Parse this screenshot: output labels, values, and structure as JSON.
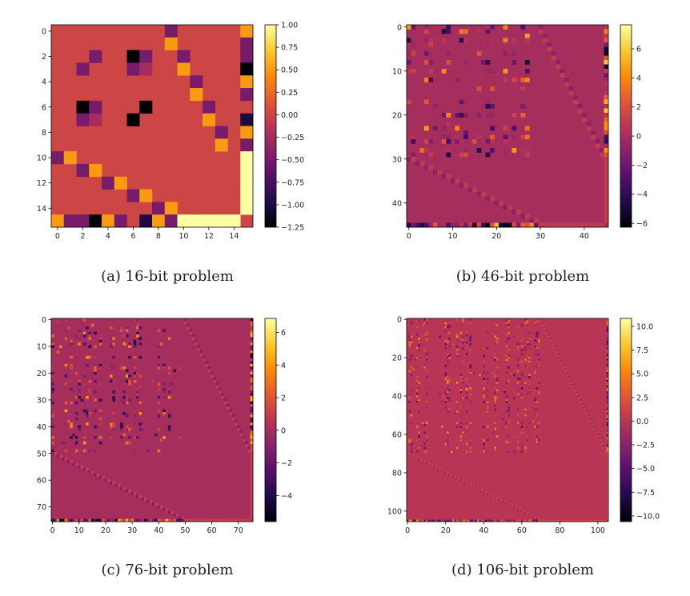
{
  "colors": {
    "colormap": "inferno",
    "frame": "#000000",
    "text": "#222222"
  },
  "chart_data": [
    {
      "id": "a",
      "type": "heatmap",
      "title": "(a) 16-bit problem",
      "size": 16,
      "default_value": 0,
      "xticks": [
        0,
        2,
        4,
        6,
        8,
        10,
        12,
        14
      ],
      "yticks": [
        0,
        2,
        4,
        6,
        8,
        10,
        12,
        14
      ],
      "colorbar": {
        "min": -1.25,
        "max": 1.0,
        "ticks": [
          1.0,
          0.75,
          0.5,
          0.25,
          0,
          -0.25,
          -0.5,
          -0.75,
          -1.0,
          -1.25
        ],
        "tick_labels": [
          "1.00",
          "0.75",
          "0.50",
          "0.25",
          "0.00",
          "−0.25",
          "−0.50",
          "−0.75",
          "−1.00",
          "−1.25"
        ]
      },
      "cells": [
        [
          0,
          9,
          -0.5
        ],
        [
          0,
          15,
          0.5
        ],
        [
          1,
          9,
          0.5
        ],
        [
          1,
          15,
          -0.5
        ],
        [
          2,
          3,
          -0.5
        ],
        [
          2,
          6,
          -1.25
        ],
        [
          2,
          7,
          -0.5
        ],
        [
          2,
          10,
          -0.5
        ],
        [
          2,
          15,
          -0.5
        ],
        [
          3,
          2,
          -0.5
        ],
        [
          3,
          6,
          -0.5
        ],
        [
          3,
          7,
          -0.25
        ],
        [
          3,
          10,
          0.5
        ],
        [
          3,
          15,
          -1.25
        ],
        [
          4,
          11,
          -0.5
        ],
        [
          4,
          15,
          0.5
        ],
        [
          5,
          11,
          0.5
        ],
        [
          5,
          15,
          -0.5
        ],
        [
          6,
          2,
          -1.25
        ],
        [
          6,
          3,
          -0.5
        ],
        [
          6,
          7,
          -1.25
        ],
        [
          6,
          12,
          -0.5
        ],
        [
          7,
          2,
          -0.5
        ],
        [
          7,
          3,
          -0.25
        ],
        [
          7,
          6,
          -1.25
        ],
        [
          7,
          12,
          0.5
        ],
        [
          7,
          15,
          -1.0
        ],
        [
          8,
          13,
          -0.5
        ],
        [
          8,
          15,
          0.5
        ],
        [
          9,
          13,
          0.5
        ],
        [
          9,
          15,
          -0.5
        ],
        [
          10,
          0,
          -0.5
        ],
        [
          10,
          1,
          0.5
        ],
        [
          10,
          15,
          1.0
        ],
        [
          11,
          2,
          -0.5
        ],
        [
          11,
          3,
          0.5
        ],
        [
          11,
          15,
          1.0
        ],
        [
          12,
          4,
          -0.5
        ],
        [
          12,
          5,
          0.5
        ],
        [
          12,
          15,
          1.0
        ],
        [
          13,
          6,
          -0.5
        ],
        [
          13,
          7,
          0.5
        ],
        [
          13,
          15,
          1.0
        ],
        [
          14,
          8,
          -0.5
        ],
        [
          14,
          9,
          0.5
        ],
        [
          14,
          15,
          1.0
        ],
        [
          15,
          0,
          0.5
        ],
        [
          15,
          1,
          -0.5
        ],
        [
          15,
          2,
          -0.5
        ],
        [
          15,
          3,
          -1.25
        ],
        [
          15,
          4,
          0.5
        ],
        [
          15,
          5,
          -0.5
        ],
        [
          15,
          7,
          -1.0
        ],
        [
          15,
          8,
          0.5
        ],
        [
          15,
          9,
          -0.5
        ],
        [
          15,
          10,
          1.0
        ],
        [
          15,
          11,
          1.0
        ],
        [
          15,
          12,
          1.0
        ],
        [
          15,
          13,
          1.0
        ],
        [
          15,
          14,
          1.0
        ]
      ]
    },
    {
      "id": "b",
      "type": "heatmap",
      "title": "(b) 46-bit problem",
      "size": 46,
      "default_value": 0,
      "xticks": [
        0,
        10,
        20,
        30,
        40
      ],
      "yticks": [
        0,
        10,
        20,
        30,
        40
      ],
      "colorbar": {
        "min": -6.27,
        "max": 7.65,
        "ticks": [
          6,
          4,
          2,
          0,
          -2,
          -4,
          -6
        ],
        "tick_labels": [
          "6",
          "4",
          "2",
          "0",
          "−2",
          "−4",
          "−6"
        ]
      },
      "structure": {
        "dense_block": 30,
        "seed": 11,
        "density": 0.55,
        "amplitude": 3.0,
        "band_value": 1.0,
        "edge_value": 0.9
      }
    },
    {
      "id": "c",
      "type": "heatmap",
      "title": "(c) 76-bit problem",
      "size": 76,
      "default_value": 0,
      "xticks": [
        0,
        10,
        20,
        30,
        40,
        50,
        60,
        70
      ],
      "yticks": [
        0,
        10,
        20,
        30,
        40,
        50,
        60,
        70
      ],
      "colorbar": {
        "min": -5.6,
        "max": 6.86,
        "ticks": [
          6,
          4,
          2,
          0,
          -2,
          -4
        ],
        "tick_labels": [
          "6",
          "4",
          "2",
          "0",
          "−2",
          "−4"
        ]
      },
      "structure": {
        "dense_block": 50,
        "seed": 23,
        "density": 0.5,
        "amplitude": 2.6,
        "band_value": 1.0,
        "edge_value": 1.0
      }
    },
    {
      "id": "d",
      "type": "heatmap",
      "title": "(d) 106-bit problem",
      "size": 106,
      "default_value": 0,
      "xticks": [
        0,
        20,
        40,
        60,
        80,
        100
      ],
      "yticks": [
        0,
        20,
        40,
        60,
        80,
        100
      ],
      "colorbar": {
        "min": -10.6,
        "max": 10.84,
        "ticks": [
          10,
          7.5,
          5,
          2.5,
          0,
          -2.5,
          -5,
          -7.5,
          -10
        ],
        "tick_labels": [
          "10.0",
          "7.5",
          "5.0",
          "2.5",
          "0.0",
          "−2.5",
          "−5.0",
          "−7.5",
          "−10.0"
        ]
      },
      "structure": {
        "dense_block": 70,
        "seed": 37,
        "density": 0.5,
        "amplitude": 3.2,
        "band_value": 1.2,
        "edge_value": 1.5
      }
    }
  ]
}
